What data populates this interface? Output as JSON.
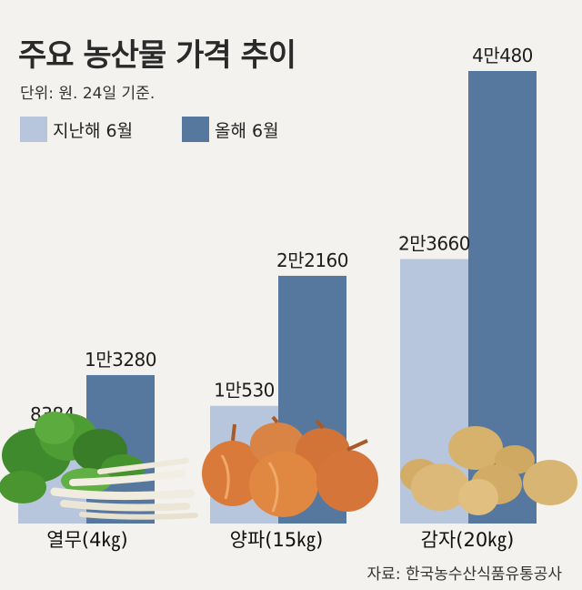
{
  "chart_data": {
    "type": "bar",
    "title": "주요 농산물 가격 추이",
    "subtitle": "단위: 원. 24일 기준.",
    "categories": [
      "열무(4㎏)",
      "양파(15㎏)",
      "감자(20㎏)"
    ],
    "series": [
      {
        "name": "지난해 6월",
        "values": [
          8384,
          10530,
          23660
        ],
        "labels": [
          "8384",
          "1만530",
          "2만3660"
        ],
        "color": "#b7c6dc"
      },
      {
        "name": "올해 6월",
        "values": [
          13280,
          22160,
          40480
        ],
        "labels": [
          "1만3280",
          "2만2160",
          "4만480"
        ],
        "color": "#56789f"
      }
    ],
    "ylim": [
      0,
      40480
    ],
    "grid": false,
    "legend": "top-left",
    "source": "자료: 한국농수산식품유통공사"
  },
  "illustrations": {
    "radish-icon": "young radish bunch",
    "onion-icon": "onions",
    "potato-icon": "potatoes"
  }
}
